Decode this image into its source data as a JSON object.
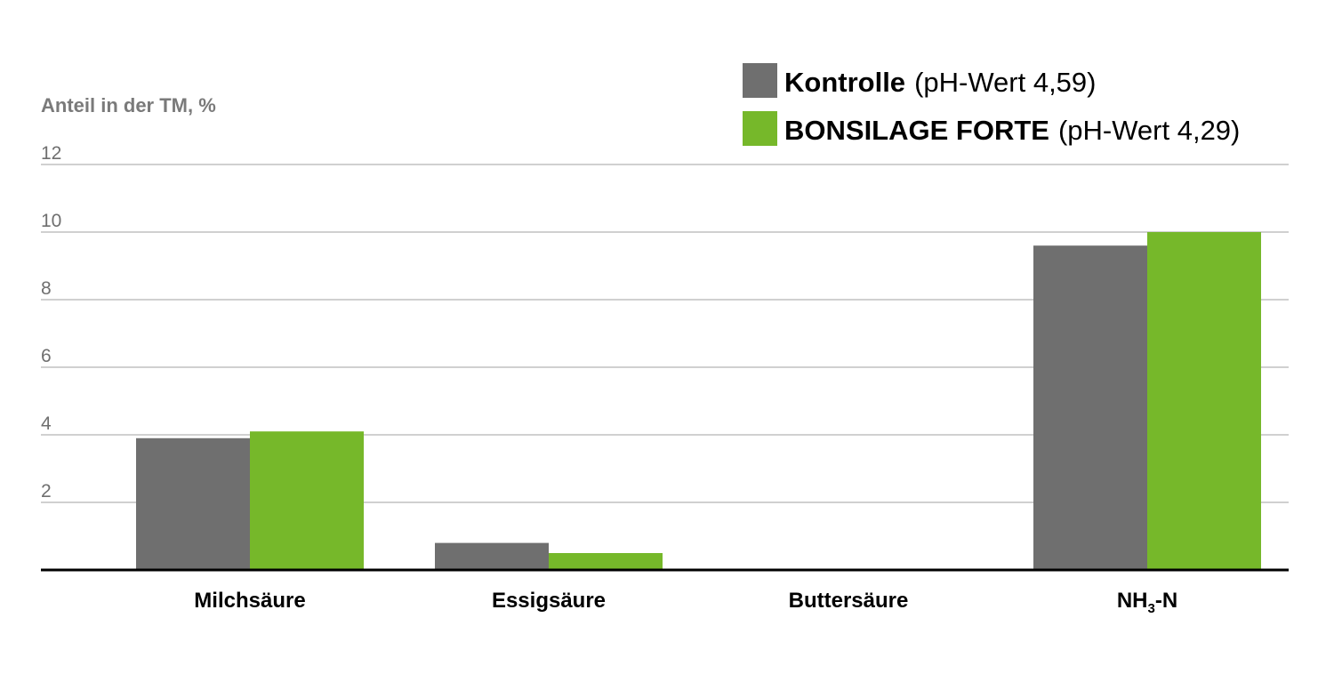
{
  "chart_data": {
    "type": "bar",
    "ylabel": "Anteil in der TM, %",
    "ylim": [
      0,
      12
    ],
    "yticks": [
      "2",
      "4",
      "6",
      "8",
      "10",
      "12"
    ],
    "ytick_values": [
      2,
      4,
      6,
      8,
      10,
      12
    ],
    "grid": true,
    "legend_position": "top-right",
    "categories": [
      {
        "label": "Milchsäure"
      },
      {
        "label": "Essigsäure"
      },
      {
        "label": "Buttersäure"
      },
      {
        "label_main": "NH",
        "label_sub": "3",
        "label_rest": "-N"
      }
    ],
    "series": [
      {
        "name": "Kontrolle",
        "note": "(pH-Wert 4,59)",
        "color": "#6f6f6f",
        "values": [
          3.9,
          0.8,
          0,
          9.6
        ]
      },
      {
        "name": "BONSILAGE FORTE",
        "note": "(pH-Wert 4,29)",
        "color": "#76b82a",
        "values": [
          4.1,
          0.5,
          0,
          10.0
        ]
      }
    ]
  }
}
